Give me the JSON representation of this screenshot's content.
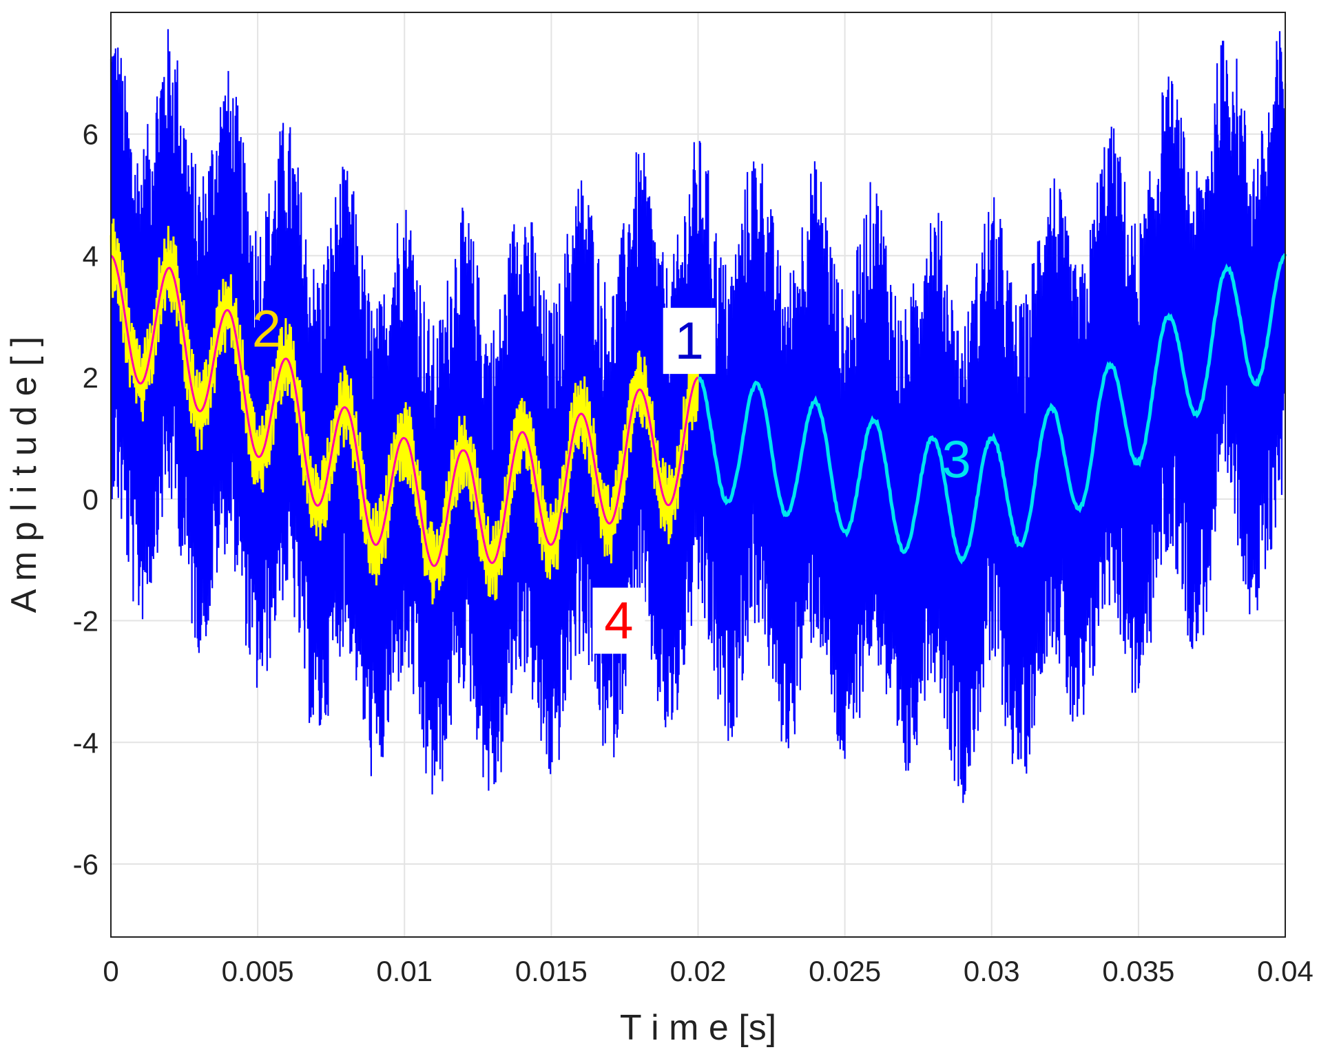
{
  "chart_data": {
    "type": "line",
    "title": "",
    "xlabel": "T i m e [s]",
    "ylabel": "A m p l i t u d e [ ]",
    "xlim": [
      0,
      0.04
    ],
    "ylim": [
      -7.2,
      8
    ],
    "xticks": [
      {
        "value": 0,
        "label": "0"
      },
      {
        "value": 0.005,
        "label": "0.005"
      },
      {
        "value": 0.01,
        "label": "0.01"
      },
      {
        "value": 0.015,
        "label": "0.015"
      },
      {
        "value": 0.02,
        "label": "0.02"
      },
      {
        "value": 0.025,
        "label": "0.025"
      },
      {
        "value": 0.03,
        "label": "0.03"
      },
      {
        "value": 0.035,
        "label": "0.035"
      },
      {
        "value": 0.04,
        "label": "0.04"
      }
    ],
    "yticks": [
      {
        "value": -6,
        "label": "-6"
      },
      {
        "value": -4,
        "label": "-4"
      },
      {
        "value": -2,
        "label": "-2"
      },
      {
        "value": 0,
        "label": "0"
      },
      {
        "value": 2,
        "label": "2"
      },
      {
        "value": 4,
        "label": "4"
      },
      {
        "value": 6,
        "label": "6"
      }
    ],
    "grid": true,
    "series": [
      {
        "label": "1",
        "color": "#0000ff",
        "x": [
          0,
          0.002,
          0.004,
          0.006,
          0.008,
          0.01,
          0.012,
          0.014,
          0.016,
          0.018,
          0.02,
          0.022,
          0.024,
          0.026,
          0.028,
          0.03,
          0.032,
          0.034,
          0.036,
          0.038,
          0.04
        ],
        "y": [
          3.0,
          2.8,
          2.1,
          1.3,
          0.5,
          0.0,
          -0.2,
          0.1,
          0.4,
          0.8,
          1.0,
          0.9,
          0.6,
          0.3,
          0.0,
          0.0,
          0.5,
          1.2,
          2.0,
          2.8,
          3.0
        ],
        "envelope_halfwidth": 4.0,
        "tone_amplitude": 1.0,
        "tone_period": 0.002
      },
      {
        "label": "2",
        "color": "#ffff00",
        "x": [
          0,
          0.002,
          0.004,
          0.006,
          0.008,
          0.01,
          0.012,
          0.014,
          0.016,
          0.018,
          0.02
        ],
        "y": [
          3.0,
          2.8,
          2.1,
          1.3,
          0.5,
          0.0,
          -0.2,
          0.1,
          0.4,
          0.8,
          1.0
        ],
        "noise_amplitude": 0.7
      },
      {
        "label": "3",
        "color": "#00e5ee",
        "x": [
          0.02,
          0.022,
          0.024,
          0.026,
          0.028,
          0.03,
          0.032,
          0.034,
          0.036,
          0.038,
          0.04
        ],
        "y": [
          1.0,
          0.9,
          0.6,
          0.3,
          0.0,
          0.0,
          0.5,
          1.2,
          2.0,
          2.8,
          3.0
        ]
      },
      {
        "label": "4",
        "color": "#ff00aa",
        "x": [
          0,
          0.002,
          0.004,
          0.006,
          0.008,
          0.01,
          0.012,
          0.014,
          0.016,
          0.018,
          0.02
        ],
        "y": [
          3.0,
          2.8,
          2.1,
          1.3,
          0.5,
          0.0,
          -0.2,
          0.1,
          0.4,
          0.8,
          1.0
        ]
      }
    ],
    "annotations": [
      {
        "text": "1",
        "x": 0.0197,
        "y": 2.6,
        "color": "#0000cc",
        "boxed": true
      },
      {
        "text": "2",
        "x": 0.0053,
        "y": 2.8,
        "color": "#ffd700",
        "boxed": false
      },
      {
        "text": "3",
        "x": 0.0288,
        "y": 0.65,
        "color": "#00e5ee",
        "boxed": false
      },
      {
        "text": "4",
        "x": 0.0173,
        "y": -2.0,
        "color": "#ff0000",
        "boxed": true
      }
    ]
  }
}
